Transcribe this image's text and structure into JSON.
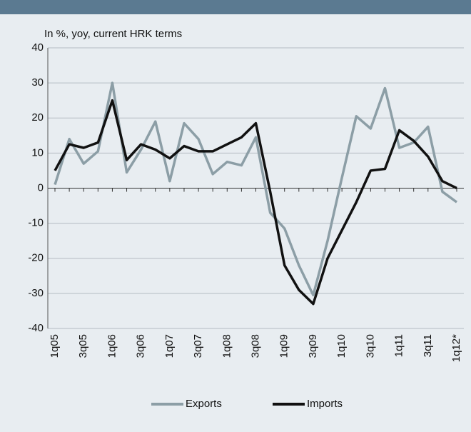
{
  "chart_data": {
    "type": "line",
    "y_label": "In %, yoy, current HRK terms",
    "categories": [
      "1q05",
      null,
      "3q05",
      null,
      "1q06",
      null,
      "3q06",
      null,
      "1q07",
      null,
      "3q07",
      null,
      "1q08",
      null,
      "3q08",
      null,
      "1q09",
      null,
      "3q09",
      null,
      "1q10",
      null,
      "3q10",
      null,
      "1q11",
      null,
      "3q11",
      null,
      "1q12*"
    ],
    "series": [
      {
        "name": "Exports",
        "color": "#8c9ea6",
        "values": [
          1,
          14,
          7,
          10.5,
          30,
          4.5,
          11,
          19,
          2,
          18.5,
          14,
          4,
          7.5,
          6.5,
          14.5,
          -7,
          -11.5,
          -22,
          -30.5,
          -15,
          3,
          20.5,
          17,
          28.5,
          11.5,
          13,
          17.5,
          -1,
          -4
        ]
      },
      {
        "name": "Imports",
        "color": "#111111",
        "values": [
          5,
          12.5,
          11.5,
          13,
          25,
          8,
          12.5,
          11,
          8.5,
          12,
          10.5,
          10.5,
          12.5,
          14.5,
          18.5,
          -1,
          -22,
          -29,
          -33,
          -20,
          -12,
          -4,
          5,
          5.5,
          16.5,
          13.5,
          9,
          2,
          0
        ]
      }
    ],
    "ylim": [
      -40,
      40
    ],
    "yticks": [
      -40,
      -30,
      -20,
      -10,
      0,
      10,
      20,
      30,
      40
    ],
    "grid": true,
    "legend": "bottom"
  }
}
